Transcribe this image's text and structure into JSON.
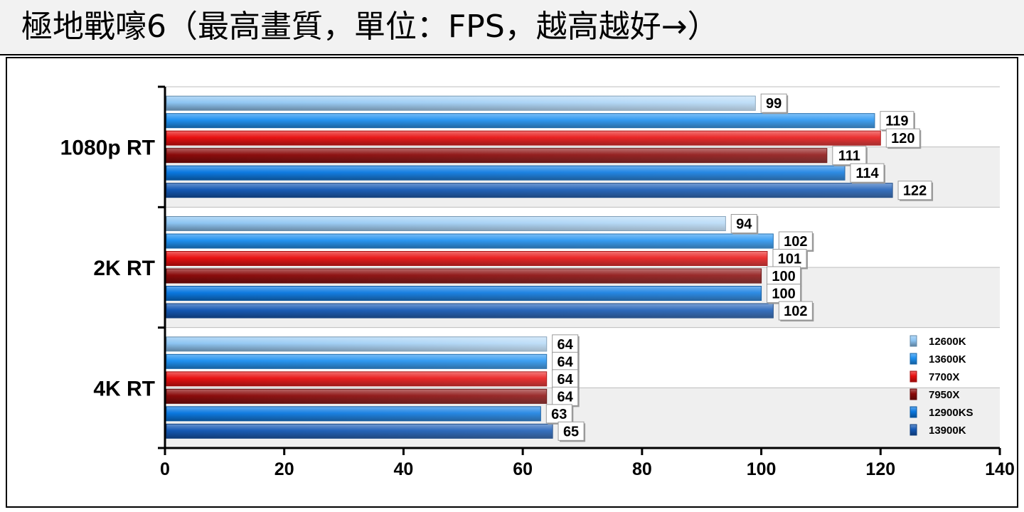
{
  "title": "極地戰嚎6（最高畫質，單位：FPS，越高越好→）",
  "chart_data": {
    "type": "bar",
    "orientation": "horizontal",
    "title": "極地戰嚎6（最高畫質，單位：FPS，越高越好→）",
    "categories": [
      "1080p RT",
      "2K RT",
      "4K RT"
    ],
    "series": [
      {
        "name": "12600K",
        "values": [
          99,
          94,
          64
        ],
        "color": "#8cc4f2"
      },
      {
        "name": "13600K",
        "values": [
          119,
          102,
          64
        ],
        "color": "#1e90f0"
      },
      {
        "name": "7700X",
        "values": [
          120,
          101,
          64
        ],
        "color": "#e81010"
      },
      {
        "name": "7950X",
        "values": [
          111,
          100,
          64
        ],
        "color": "#8a0a0a"
      },
      {
        "name": "12900KS",
        "values": [
          114,
          100,
          63
        ],
        "color": "#0a78e0"
      },
      {
        "name": "13900K",
        "values": [
          122,
          102,
          65
        ],
        "color": "#1458b4"
      }
    ],
    "xlim": [
      0,
      140
    ],
    "xticks": [
      0,
      20,
      40,
      60,
      80,
      100,
      120,
      140
    ],
    "xlabel": "",
    "ylabel": "",
    "grid": true,
    "legend_position": "bottom-right"
  }
}
